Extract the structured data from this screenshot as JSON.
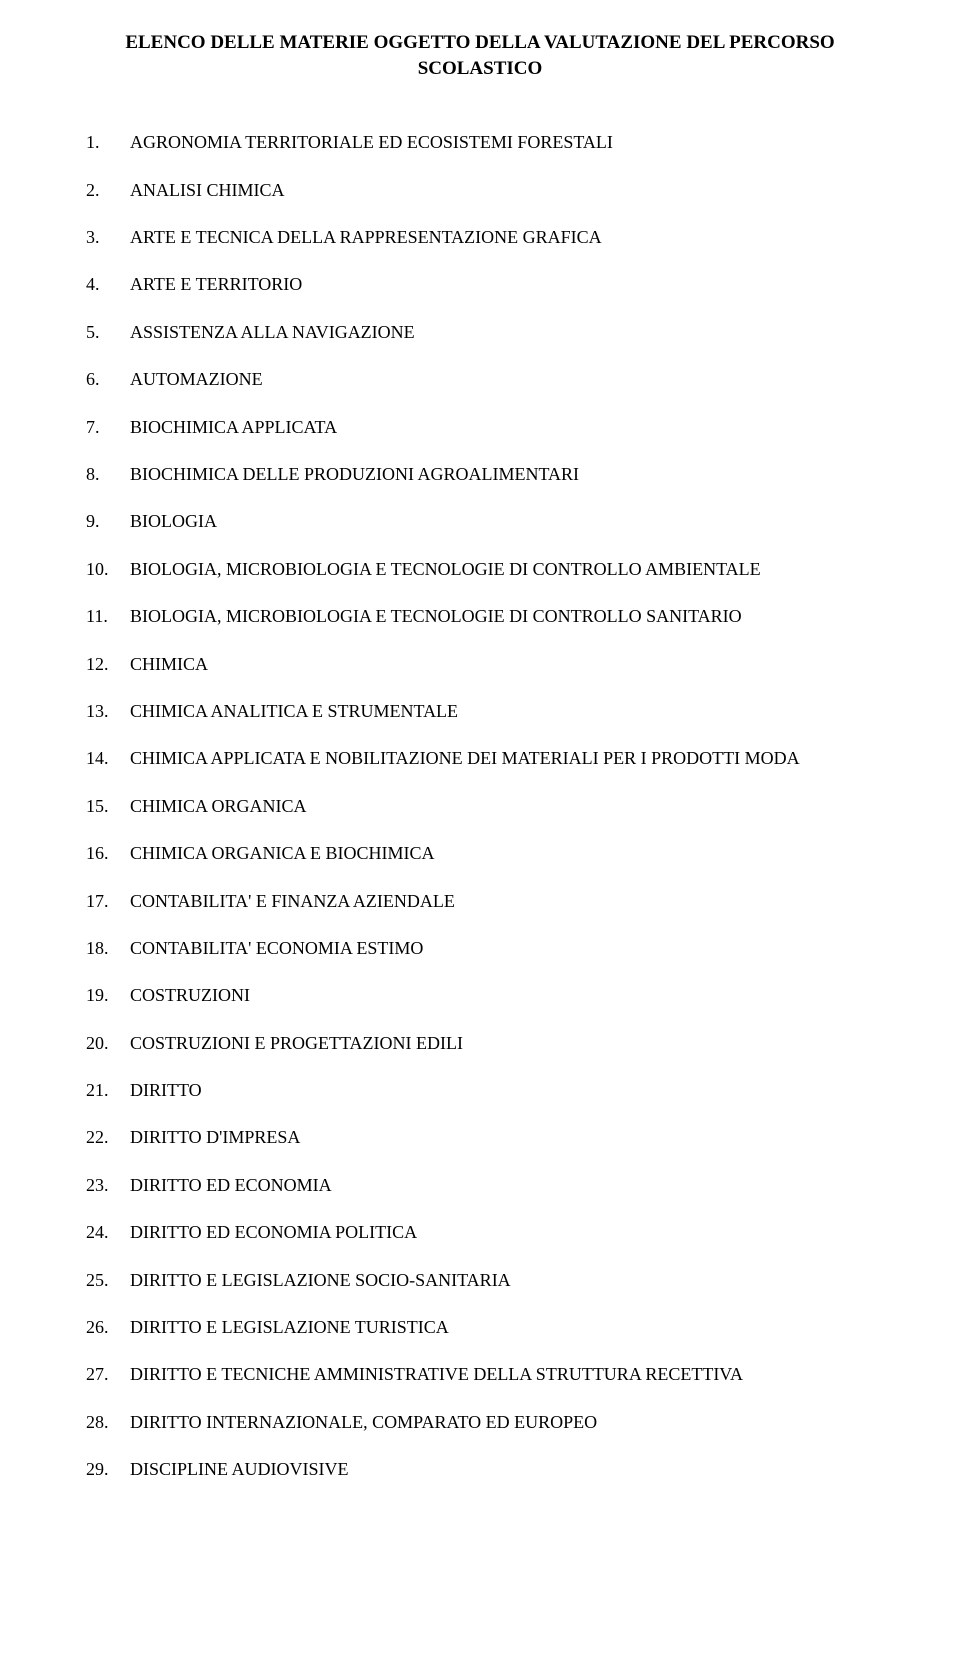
{
  "title_line1": "ELENCO DELLE MATERIE OGGETTO DELLA VALUTAZIONE DEL PERCORSO",
  "title_line2": "SCOLASTICO",
  "items": [
    {
      "num": "1.",
      "label": "AGRONOMIA TERRITORIALE ED ECOSISTEMI FORESTALI"
    },
    {
      "num": "2.",
      "label": "ANALISI CHIMICA"
    },
    {
      "num": "3.",
      "label": "ARTE E TECNICA DELLA RAPPRESENTAZIONE GRAFICA"
    },
    {
      "num": "4.",
      "label": "ARTE E TERRITORIO"
    },
    {
      "num": "5.",
      "label": "ASSISTENZA ALLA NAVIGAZIONE"
    },
    {
      "num": "6.",
      "label": "AUTOMAZIONE"
    },
    {
      "num": "7.",
      "label": "BIOCHIMICA APPLICATA"
    },
    {
      "num": "8.",
      "label": "BIOCHIMICA DELLE PRODUZIONI AGROALIMENTARI"
    },
    {
      "num": "9.",
      "label": "BIOLOGIA"
    },
    {
      "num": "10.",
      "label": "BIOLOGIA, MICROBIOLOGIA E TECNOLOGIE DI CONTROLLO AMBIENTALE"
    },
    {
      "num": "11.",
      "label": "BIOLOGIA, MICROBIOLOGIA E TECNOLOGIE DI CONTROLLO SANITARIO"
    },
    {
      "num": "12.",
      "label": "CHIMICA"
    },
    {
      "num": "13.",
      "label": "CHIMICA ANALITICA E  STRUMENTALE"
    },
    {
      "num": "14.",
      "label": "CHIMICA APPLICATA E NOBILITAZIONE DEI MATERIALI PER I PRODOTTI MODA"
    },
    {
      "num": "15.",
      "label": "CHIMICA ORGANICA"
    },
    {
      "num": "16.",
      "label": "CHIMICA ORGANICA E BIOCHIMICA"
    },
    {
      "num": "17.",
      "label": "CONTABILITA' E FINANZA AZIENDALE"
    },
    {
      "num": "18.",
      "label": "CONTABILITA' ECONOMIA ESTIMO"
    },
    {
      "num": "19.",
      "label": "COSTRUZIONI"
    },
    {
      "num": "20.",
      "label": "COSTRUZIONI E PROGETTAZIONI EDILI"
    },
    {
      "num": "21.",
      "label": "DIRITTO"
    },
    {
      "num": "22.",
      "label": "DIRITTO D'IMPRESA"
    },
    {
      "num": "23.",
      "label": "DIRITTO ED ECONOMIA"
    },
    {
      "num": "24.",
      "label": "DIRITTO ED ECONOMIA POLITICA"
    },
    {
      "num": "25.",
      "label": "DIRITTO E LEGISLAZIONE SOCIO-SANITARIA"
    },
    {
      "num": "26.",
      "label": "DIRITTO E LEGISLAZIONE TURISTICA"
    },
    {
      "num": "27.",
      "label": "DIRITTO E TECNICHE AMMINISTRATIVE DELLA STRUTTURA RECETTIVA"
    },
    {
      "num": "28.",
      "label": "DIRITTO INTERNAZIONALE, COMPARATO ED EUROPEO"
    },
    {
      "num": "29.",
      "label": "DISCIPLINE AUDIOVISIVE"
    }
  ]
}
